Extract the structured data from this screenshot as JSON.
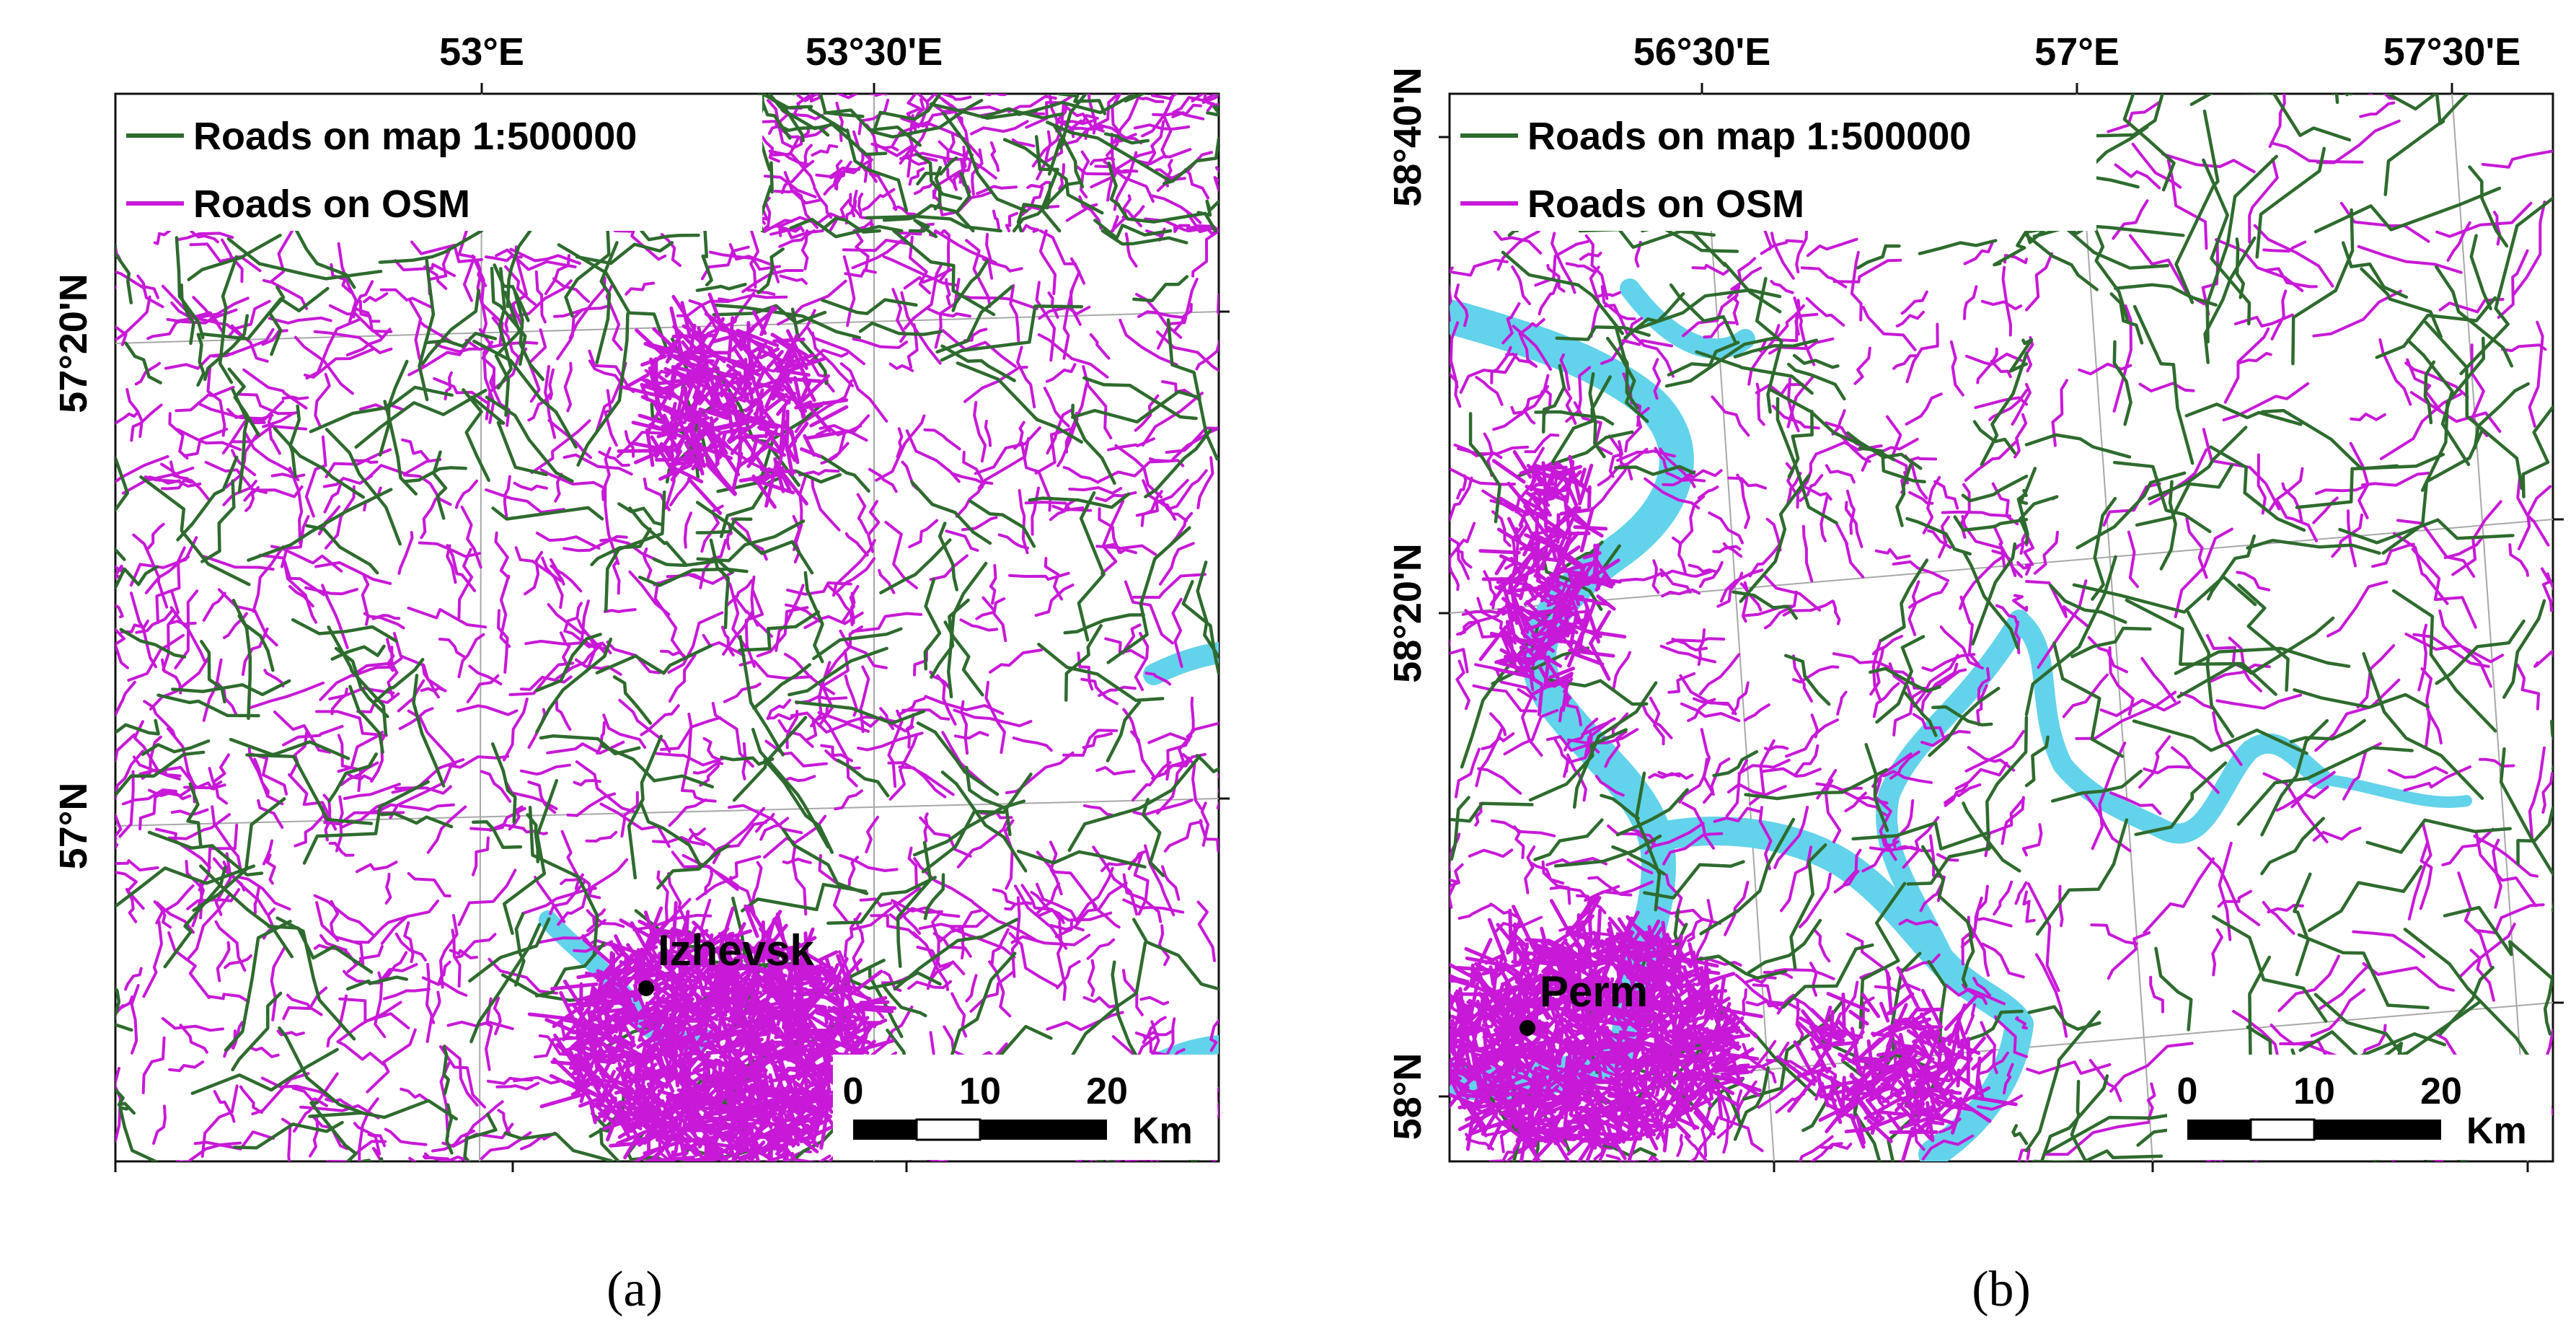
{
  "colors": {
    "map_road": "#2e6b2e",
    "osm_road": "#c818d8",
    "water": "#62d3ea",
    "graticule": "#a8a8a8",
    "frame": "#111111",
    "background": "#ffffff"
  },
  "panels": [
    {
      "id": "a",
      "caption": "(a)",
      "legend": [
        {
          "label": "Roads on map 1:500000",
          "color": "#2e6b2e"
        },
        {
          "label": "Roads on OSM",
          "color": "#c818d8"
        }
      ],
      "top_labels": [
        "53°E",
        "53°30'E"
      ],
      "left_labels": [
        "57°20'N",
        "57°N"
      ],
      "city": "Izhevsk",
      "scale": {
        "ticks": [
          "0",
          "10",
          "20"
        ],
        "unit": "Km"
      }
    },
    {
      "id": "b",
      "caption": "(b)",
      "legend": [
        {
          "label": "Roads on map 1:500000",
          "color": "#2e6b2e"
        },
        {
          "label": "Roads on OSM",
          "color": "#c818d8"
        }
      ],
      "top_labels": [
        "56°30'E",
        "57°E",
        "57°30'E"
      ],
      "left_labels": [
        "58°40'N",
        "58°20'N",
        "58°N"
      ],
      "city": "Perm",
      "scale": {
        "ticks": [
          "0",
          "10",
          "20"
        ],
        "unit": "Km"
      }
    }
  ]
}
